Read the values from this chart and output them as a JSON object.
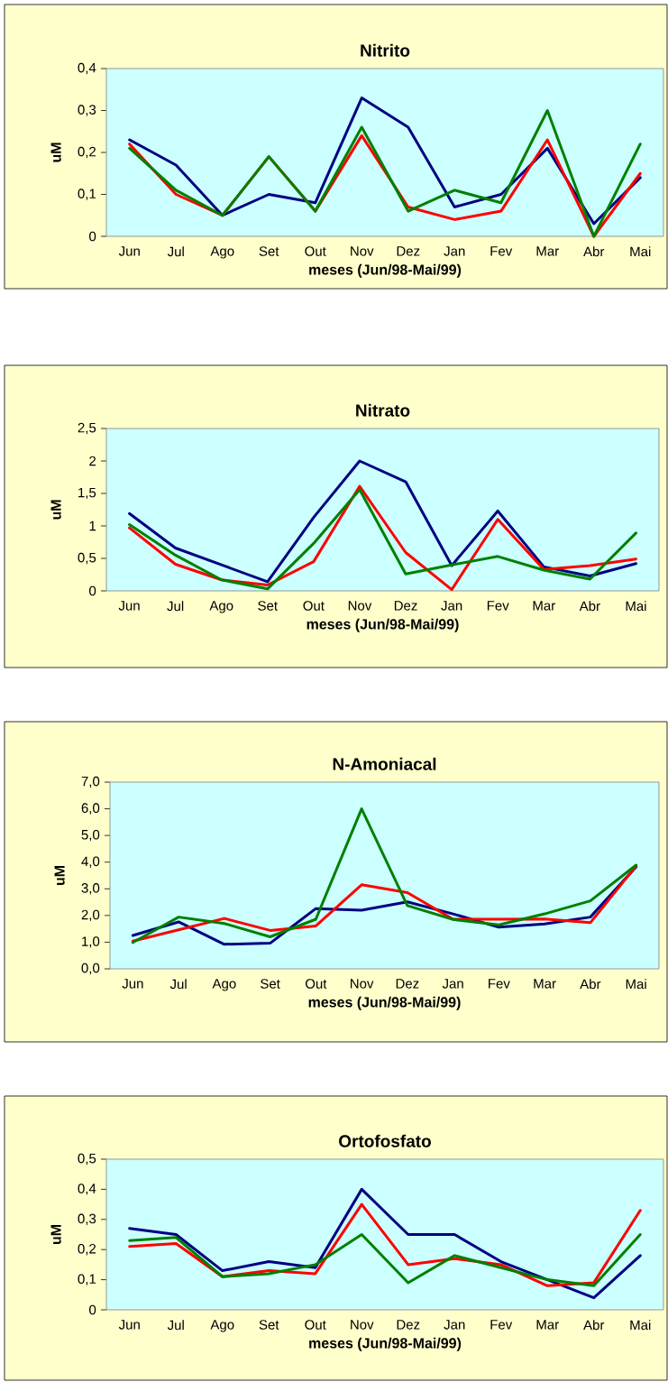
{
  "chart_data": [
    {
      "type": "line",
      "title": "Nitrito",
      "xlabel": "meses (Jun/98-Mai/99)",
      "ylabel": "uM",
      "categories": [
        "Jun",
        "Jul",
        "Ago",
        "Set",
        "Out",
        "Nov",
        "Dez",
        "Jan",
        "Fev",
        "Mar",
        "Abr",
        "Mai"
      ],
      "ylim": [
        0,
        0.4
      ],
      "yticks": [
        0,
        {
          "value": 0.1,
          "label": "0,1"
        },
        {
          "value": 0.2,
          "label": "0,2"
        },
        {
          "value": 0.3,
          "label": "0,3"
        },
        {
          "value": 0.4,
          "label": "0,4"
        }
      ],
      "grid": false,
      "series": [
        {
          "color": "#000080",
          "values": [
            0.23,
            0.17,
            0.05,
            0.1,
            0.08,
            0.33,
            0.26,
            0.07,
            0.1,
            0.21,
            0.03,
            0.14
          ]
        },
        {
          "color": "#ff0000",
          "values": [
            0.22,
            0.1,
            0.05,
            0.19,
            0.06,
            0.24,
            0.07,
            0.04,
            0.06,
            0.23,
            0.0,
            0.15
          ]
        },
        {
          "color": "#008000",
          "values": [
            0.21,
            0.11,
            0.05,
            0.19,
            0.06,
            0.26,
            0.06,
            0.11,
            0.08,
            0.3,
            0.0,
            0.22
          ]
        }
      ]
    },
    {
      "type": "line",
      "title": "Nitrato",
      "xlabel": "meses (Jun/98-Mai/99)",
      "ylabel": "uM",
      "categories": [
        "Jun",
        "Jul",
        "Ago",
        "Set",
        "Out",
        "Nov",
        "Dez",
        "Jan",
        "Fev",
        "Mar",
        "Abr",
        "Mai"
      ],
      "ylim": [
        0,
        2.5
      ],
      "yticks": [
        0,
        {
          "value": 0.5,
          "label": "0,5"
        },
        1,
        {
          "value": 1.5,
          "label": "1,5"
        },
        2,
        {
          "value": 2.5,
          "label": "2,5"
        }
      ],
      "grid": false,
      "series": [
        {
          "color": "#000080",
          "values": [
            1.19,
            0.66,
            0.4,
            0.14,
            1.13,
            2.0,
            1.68,
            0.39,
            1.23,
            0.37,
            0.23,
            0.42
          ]
        },
        {
          "color": "#ff0000",
          "values": [
            0.97,
            0.41,
            0.17,
            0.09,
            0.45,
            1.61,
            0.59,
            0.02,
            1.1,
            0.33,
            0.39,
            0.49
          ]
        },
        {
          "color": "#008000",
          "values": [
            1.02,
            0.55,
            0.17,
            0.03,
            0.73,
            1.56,
            0.26,
            0.4,
            0.53,
            0.32,
            0.18,
            0.89
          ]
        }
      ]
    },
    {
      "type": "line",
      "title": "N-Amoniacal",
      "xlabel": "meses (Jun/98-Mai/99)",
      "ylabel": "uM",
      "categories": [
        "Jun",
        "Jul",
        "Ago",
        "Set",
        "Out",
        "Nov",
        "Dez",
        "Jan",
        "Fev",
        "Mar",
        "Abr",
        "Mai"
      ],
      "ylim": [
        0,
        7
      ],
      "yticks": [
        {
          "value": 0,
          "label": "0,0"
        },
        {
          "value": 1,
          "label": "1,0"
        },
        {
          "value": 2,
          "label": "2,0"
        },
        {
          "value": 3,
          "label": "3,0"
        },
        {
          "value": 4,
          "label": "4,0"
        },
        {
          "value": 5,
          "label": "5,0"
        },
        {
          "value": 6,
          "label": "6,0"
        },
        {
          "value": 7,
          "label": "7,0"
        }
      ],
      "grid": false,
      "series": [
        {
          "color": "#000080",
          "values": [
            1.25,
            1.76,
            0.92,
            0.96,
            2.26,
            2.2,
            2.51,
            2.06,
            1.56,
            1.68,
            1.94,
            3.82
          ]
        },
        {
          "color": "#ff0000",
          "values": [
            1.04,
            1.46,
            1.89,
            1.44,
            1.61,
            3.15,
            2.86,
            1.86,
            1.86,
            1.87,
            1.73,
            3.86
          ]
        },
        {
          "color": "#008000",
          "values": [
            0.99,
            1.94,
            1.7,
            1.2,
            1.86,
            6.0,
            2.37,
            1.85,
            1.65,
            2.06,
            2.55,
            3.89
          ]
        }
      ]
    },
    {
      "type": "line",
      "title": "Ortofosfato",
      "xlabel": "meses (Jun/98-Mai/99)",
      "ylabel": "uM",
      "categories": [
        "Jun",
        "Jul",
        "Ago",
        "Set",
        "Out",
        "Nov",
        "Dez",
        "Jan",
        "Fev",
        "Mar",
        "Abr",
        "Mai"
      ],
      "ylim": [
        0,
        0.5
      ],
      "yticks": [
        0,
        {
          "value": 0.1,
          "label": "0,1"
        },
        {
          "value": 0.2,
          "label": "0,2"
        },
        {
          "value": 0.3,
          "label": "0,3"
        },
        {
          "value": 0.4,
          "label": "0,4"
        },
        {
          "value": 0.5,
          "label": "0,5"
        }
      ],
      "grid": false,
      "series": [
        {
          "color": "#000080",
          "values": [
            0.27,
            0.25,
            0.13,
            0.16,
            0.14,
            0.4,
            0.25,
            0.25,
            0.16,
            0.1,
            0.04,
            0.18
          ]
        },
        {
          "color": "#ff0000",
          "values": [
            0.21,
            0.22,
            0.11,
            0.13,
            0.12,
            0.35,
            0.15,
            0.17,
            0.15,
            0.08,
            0.09,
            0.33
          ]
        },
        {
          "color": "#008000",
          "values": [
            0.23,
            0.24,
            0.11,
            0.12,
            0.15,
            0.25,
            0.09,
            0.18,
            0.14,
            0.1,
            0.08,
            0.25
          ]
        }
      ]
    }
  ]
}
